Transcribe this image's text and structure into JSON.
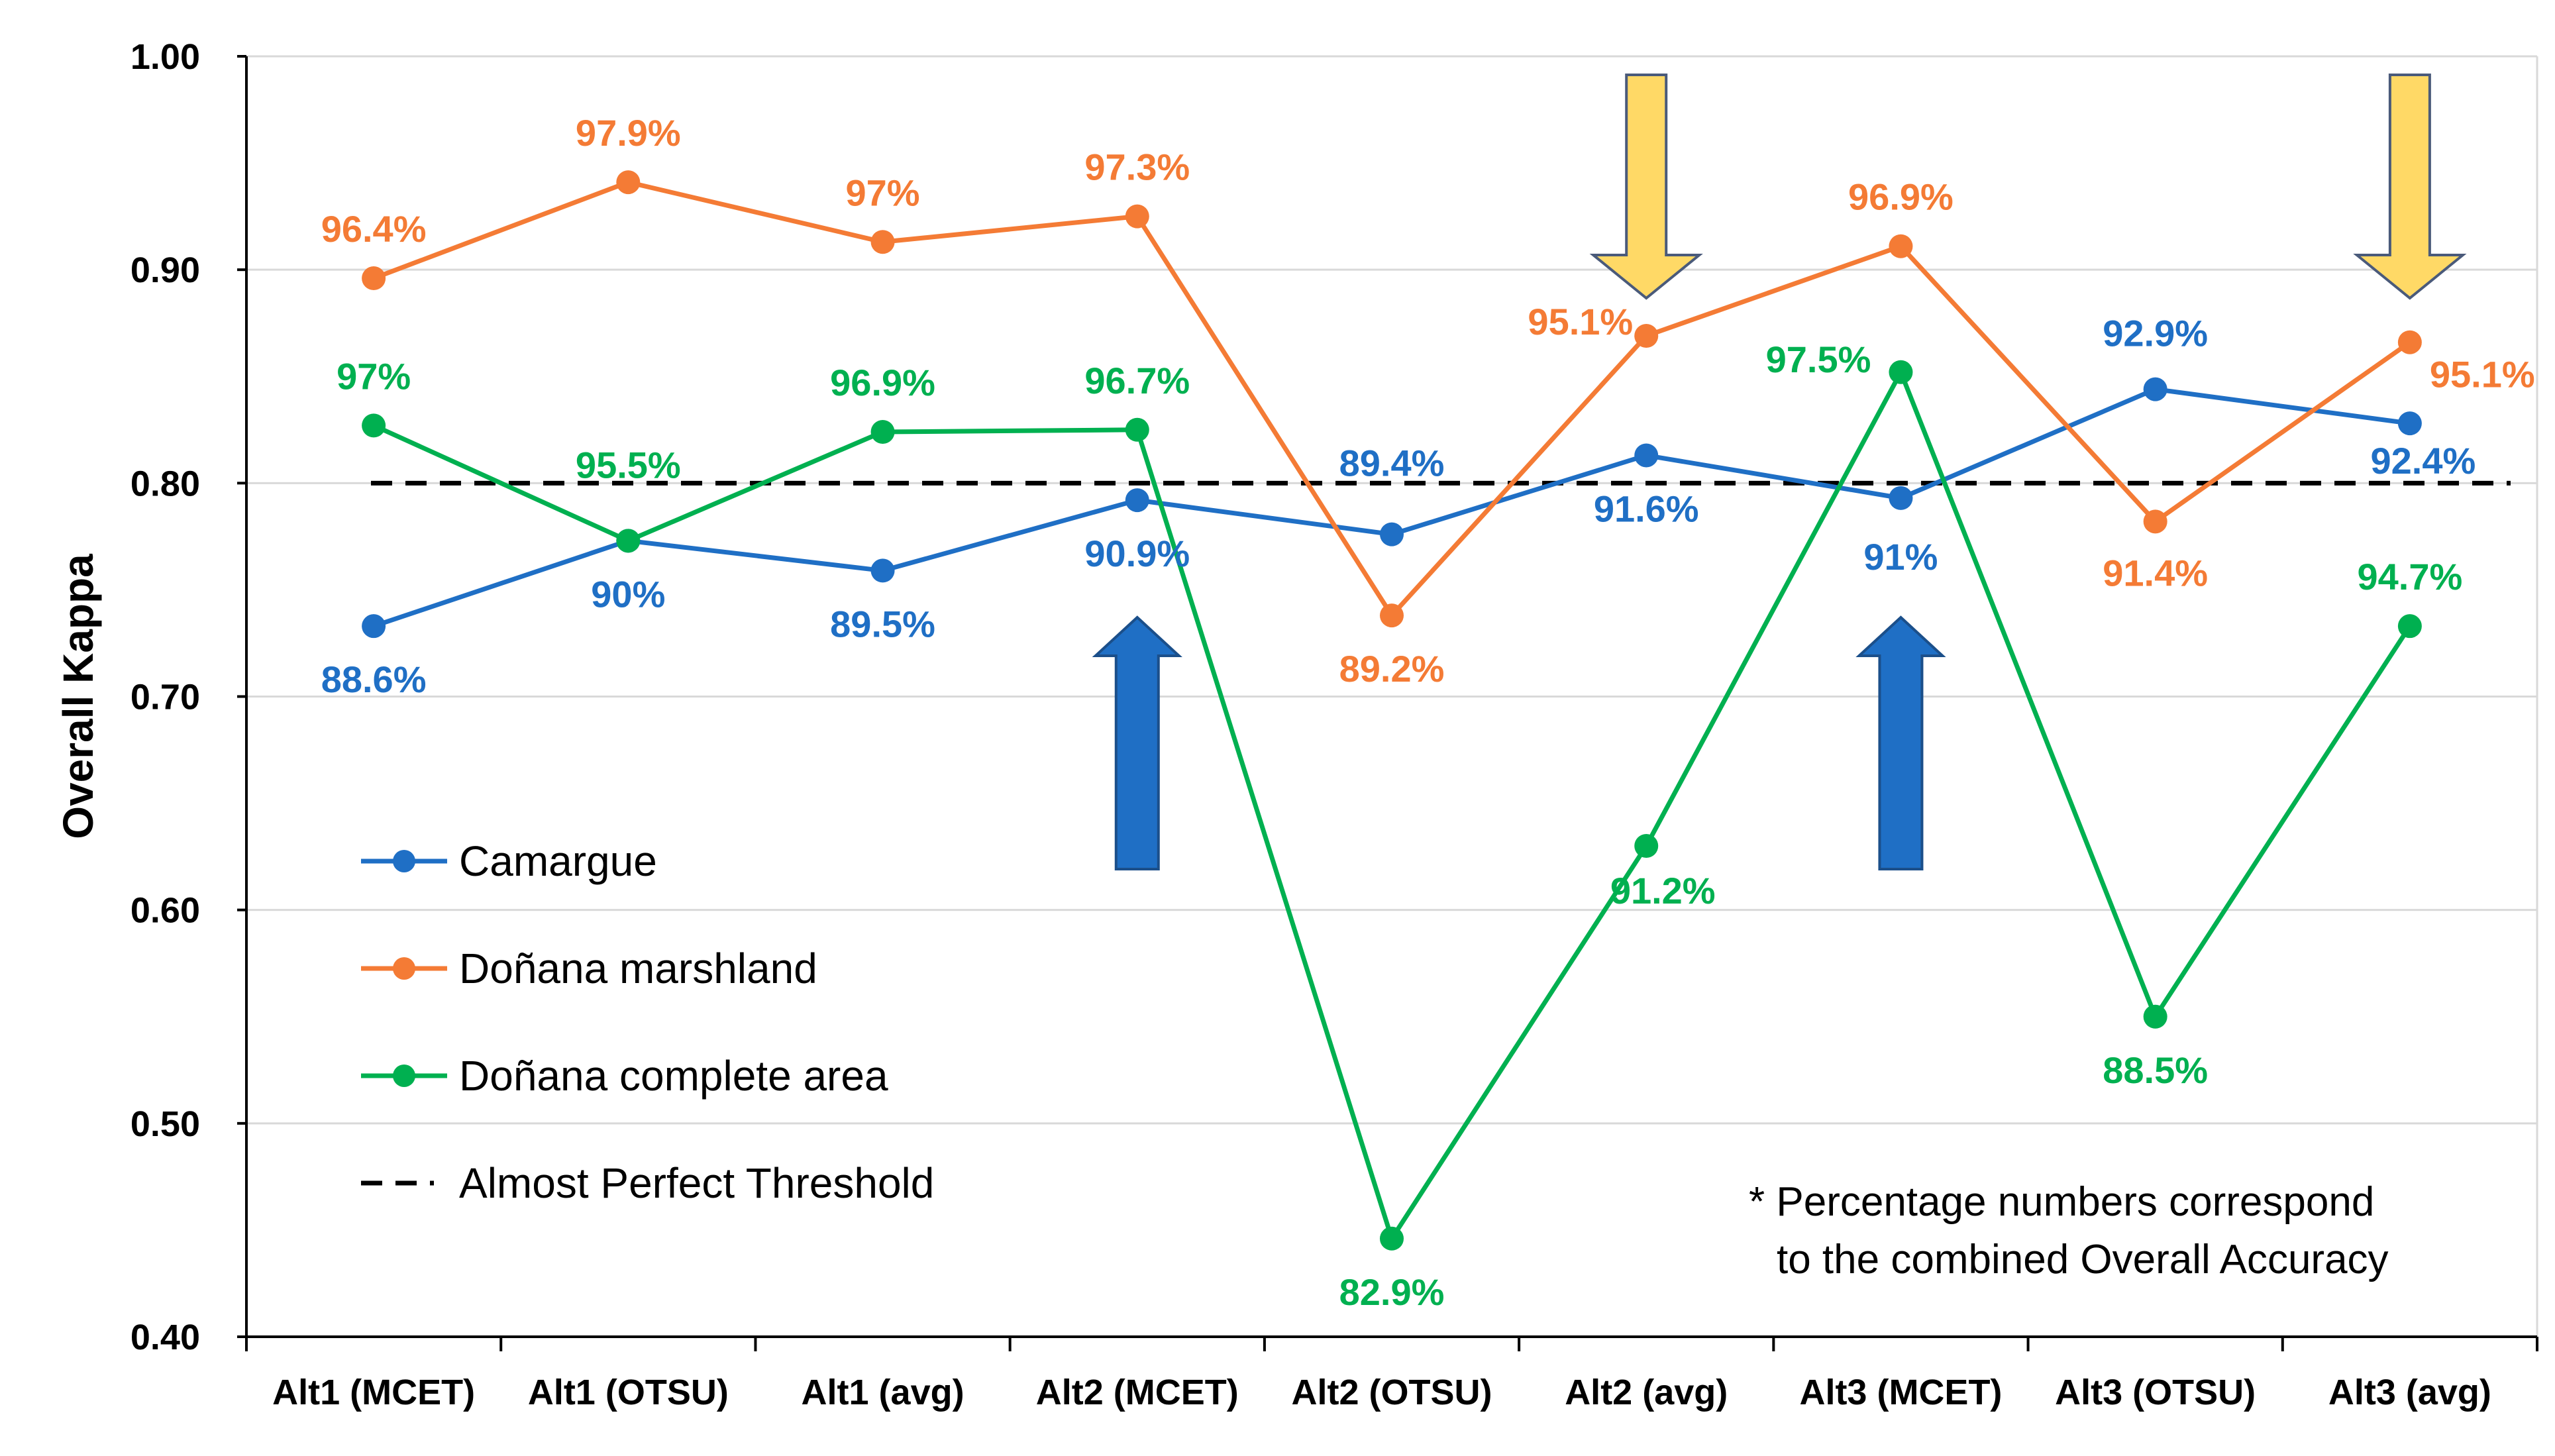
{
  "chart_data": {
    "type": "line",
    "ylabel": "Overall Kappa",
    "ylim": [
      0.4,
      1.0
    ],
    "yticks": [
      "0.40",
      "0.50",
      "0.60",
      "0.70",
      "0.80",
      "0.90",
      "1.00"
    ],
    "grid": "horizontal",
    "categories": [
      "Alt1 (MCET)",
      "Alt1 (OTSU)",
      "Alt1 (avg)",
      "Alt2 (MCET)",
      "Alt2 (OTSU)",
      "Alt2 (avg)",
      "Alt3 (MCET)",
      "Alt3 (OTSU)",
      "Alt3 (avg)"
    ],
    "series": [
      {
        "name": "Camargue",
        "color": "#1f6fc5",
        "values": [
          0.733,
          0.773,
          0.759,
          0.792,
          0.776,
          0.813,
          0.793,
          0.844,
          0.828
        ],
        "labels": [
          "88.6%",
          "90%",
          "89.5%",
          "90.9%",
          "89.4%",
          "91.6%",
          "91%",
          "92.9%",
          "92.4%"
        ]
      },
      {
        "name": "Doñana marshland",
        "color": "#f47b35",
        "values": [
          0.896,
          0.941,
          0.913,
          0.925,
          0.738,
          0.869,
          0.911,
          0.782,
          0.866
        ],
        "labels": [
          "96.4%",
          "97.9%",
          "97%",
          "97.3%",
          "89.2%",
          "95.1%",
          "96.9%",
          "91.4%",
          "95.1%"
        ]
      },
      {
        "name": "Doñana complete area",
        "color": "#00b050",
        "values": [
          0.827,
          0.773,
          0.824,
          0.825,
          0.446,
          0.63,
          0.852,
          0.55,
          0.733
        ],
        "labels": [
          "97%",
          "95.5%",
          "96.9%",
          "96.7%",
          "82.9%",
          "91.2%",
          "97.5%",
          "88.5%",
          "94.7%"
        ]
      }
    ],
    "threshold": {
      "name": "Almost Perfect Threshold",
      "value": 0.8,
      "color": "#000000"
    },
    "arrows": [
      {
        "category": "Alt2 (MCET)",
        "direction": "up",
        "color": "#1f6fc5"
      },
      {
        "category": "Alt3 (MCET)",
        "direction": "up",
        "color": "#1f6fc5"
      },
      {
        "category": "Alt2 (avg)",
        "direction": "down",
        "color": "#ffd966"
      },
      {
        "category": "Alt3 (avg)",
        "direction": "down",
        "color": "#ffd966"
      }
    ],
    "legend_position": "lower-left",
    "note_lines": [
      "* Percentage numbers correspond",
      "to the combined Overall Accuracy"
    ]
  }
}
